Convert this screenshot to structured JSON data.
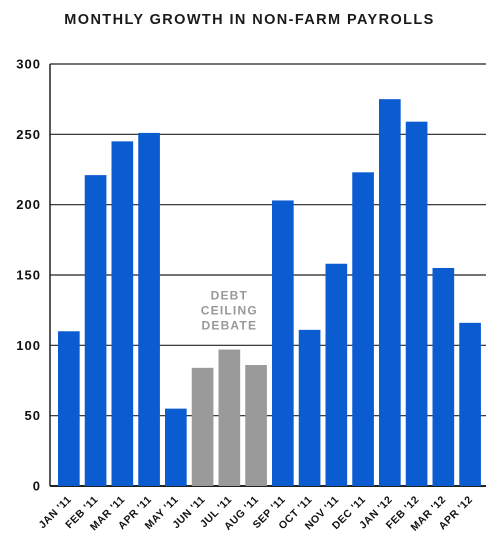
{
  "chart_data": {
    "type": "bar",
    "title": "MONTHLY GROWTH IN NON-FARM PAYROLLS",
    "categories": [
      "JAN '11",
      "FEB '11",
      "MAR '11",
      "APR '11",
      "MAY '11",
      "JUN '11",
      "JUL '11",
      "AUG '11",
      "SEP '11",
      "OCT '11",
      "NOV '11",
      "DEC '11",
      "JAN '12",
      "FEB '12",
      "MAR '12",
      "APR '12"
    ],
    "values": [
      110,
      221,
      245,
      251,
      55,
      84,
      97,
      86,
      203,
      111,
      158,
      223,
      275,
      259,
      155,
      116
    ],
    "highlight": [
      "normal",
      "normal",
      "normal",
      "normal",
      "normal",
      "debt",
      "debt",
      "debt",
      "normal",
      "normal",
      "normal",
      "normal",
      "normal",
      "normal",
      "normal",
      "normal"
    ],
    "ylim": [
      0,
      300
    ],
    "yticks": [
      0,
      50,
      100,
      150,
      200,
      250,
      300
    ],
    "grid": true,
    "annotation": [
      "DEBT",
      "CEILING",
      "DEBATE"
    ],
    "xlabel": "",
    "ylabel": ""
  },
  "colors": {
    "bar": "#0b5cd0",
    "debt_bar": "#9a9a9a",
    "grid": "#222222",
    "annotation": "#999999"
  }
}
